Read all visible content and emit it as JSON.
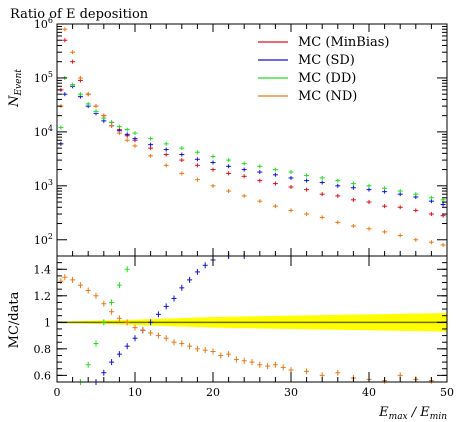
{
  "chart_data": [
    {
      "type": "scatter",
      "title": "Ratio of E deposition",
      "ylabel": "N_Event",
      "xlabel": "",
      "yscale": "log",
      "xlim": [
        0,
        50
      ],
      "ylim": [
        50,
        1000000
      ],
      "yticks": [
        {
          "value": 100,
          "base": "10",
          "exp": "2"
        },
        {
          "value": 1000,
          "base": "10",
          "exp": "3"
        },
        {
          "value": 10000,
          "base": "10",
          "exp": "4"
        },
        {
          "value": 100000,
          "base": "10",
          "exp": "5"
        },
        {
          "value": 1000000,
          "base": "10",
          "exp": "6"
        }
      ],
      "legend_position": "top-right",
      "series": [
        {
          "name": "MC (MinBias)",
          "color": "#e0101a",
          "x": [
            0.5,
            1,
            2,
            3,
            4,
            5,
            6,
            7,
            8,
            9,
            10,
            12,
            14,
            16,
            18,
            20,
            22,
            24,
            26,
            28,
            30,
            32,
            34,
            36,
            38,
            40,
            42,
            44,
            46,
            48,
            49.5
          ],
          "y": [
            60000,
            500000,
            200000,
            90000,
            50000,
            30000,
            20000,
            15000,
            11000,
            8500,
            7000,
            5000,
            3800,
            3000,
            2400,
            2000,
            1700,
            1500,
            1250,
            1100,
            950,
            850,
            700,
            650,
            550,
            500,
            420,
            400,
            350,
            300,
            280
          ]
        },
        {
          "name": "MC (SD)",
          "color": "#1010d8",
          "x": [
            0.5,
            1,
            2,
            3,
            4,
            5,
            6,
            7,
            8,
            9,
            10,
            12,
            14,
            16,
            18,
            20,
            22,
            24,
            26,
            28,
            30,
            32,
            34,
            36,
            38,
            40,
            42,
            44,
            46,
            48,
            49.5
          ],
          "y": [
            6000,
            50000,
            70000,
            45000,
            30000,
            22000,
            16000,
            13000,
            10500,
            9000,
            7500,
            5800,
            4700,
            3800,
            3100,
            2700,
            2300,
            2000,
            1800,
            1600,
            1400,
            1250,
            1150,
            1000,
            920,
            850,
            780,
            700,
            620,
            520,
            450
          ]
        },
        {
          "name": "MC (DD)",
          "color": "#22dd22",
          "x": [
            0.5,
            1,
            2,
            3,
            4,
            5,
            6,
            7,
            8,
            9,
            10,
            12,
            14,
            16,
            18,
            20,
            22,
            24,
            26,
            28,
            30,
            32,
            34,
            36,
            38,
            40,
            42,
            44,
            46,
            48,
            49.5
          ],
          "y": [
            12000,
            100000,
            75000,
            50000,
            33000,
            24000,
            18000,
            15000,
            12500,
            11000,
            9500,
            7500,
            6000,
            5000,
            4200,
            3500,
            3000,
            2600,
            2300,
            2000,
            1800,
            1550,
            1400,
            1250,
            1100,
            1000,
            900,
            800,
            700,
            600,
            550
          ]
        },
        {
          "name": "MC (ND)",
          "color": "#ee7711",
          "x": [
            0.5,
            1,
            2,
            3,
            4,
            5,
            6,
            7,
            8,
            9,
            10,
            12,
            14,
            16,
            18,
            20,
            22,
            24,
            26,
            28,
            30,
            32,
            34,
            36,
            38,
            40,
            42,
            44,
            46,
            48,
            49.5
          ],
          "y": [
            30000,
            800000,
            300000,
            100000,
            50000,
            30000,
            20000,
            13000,
            9500,
            7000,
            5500,
            3600,
            2400,
            1700,
            1300,
            1000,
            800,
            650,
            520,
            420,
            350,
            300,
            260,
            210,
            180,
            160,
            140,
            120,
            100,
            90,
            80
          ]
        }
      ]
    },
    {
      "type": "scatter",
      "title": "",
      "ylabel": "MC/data",
      "xlabel": "E_max / E_min",
      "xlim": [
        0,
        50
      ],
      "ylim": [
        0.55,
        1.5
      ],
      "xticks": [
        0,
        10,
        20,
        30,
        40,
        50
      ],
      "yticks": [
        0.6,
        0.8,
        1,
        1.2,
        1.4
      ],
      "reference_line": 1,
      "band": {
        "color": "#ffff00",
        "x": [
          0,
          10,
          20,
          30,
          40,
          50
        ],
        "half_width": [
          0.005,
          0.02,
          0.04,
          0.05,
          0.06,
          0.07
        ]
      },
      "series": [
        {
          "name": "MC (SD)",
          "color": "#1010d8",
          "x": [
            5,
            6,
            7,
            8,
            9,
            10,
            11,
            12,
            13,
            14,
            15,
            16,
            17,
            18,
            19,
            20,
            22,
            24
          ],
          "y": [
            0.55,
            0.62,
            0.7,
            0.76,
            0.82,
            0.88,
            0.94,
            1.0,
            1.06,
            1.12,
            1.18,
            1.26,
            1.32,
            1.38,
            1.43,
            1.47,
            1.5,
            1.5
          ]
        },
        {
          "name": "MC (DD)",
          "color": "#22dd22",
          "x": [
            3,
            4,
            5,
            6,
            7,
            8,
            9,
            10
          ],
          "y": [
            0.55,
            0.68,
            0.84,
            1.0,
            1.15,
            1.28,
            1.4,
            1.5
          ]
        },
        {
          "name": "MC (ND)",
          "color": "#ee7711",
          "x": [
            0.5,
            1,
            2,
            3,
            4,
            5,
            6,
            7,
            8,
            9,
            10,
            11,
            12,
            13,
            14,
            15,
            16,
            17,
            18,
            19,
            20,
            21,
            22,
            23,
            24,
            25,
            26,
            27,
            28,
            29,
            30,
            32,
            34,
            36,
            38,
            40,
            42,
            44,
            46,
            48
          ],
          "y": [
            1.31,
            1.34,
            1.32,
            1.28,
            1.24,
            1.2,
            1.14,
            1.08,
            1.03,
            1.0,
            0.96,
            0.94,
            0.92,
            0.9,
            0.88,
            0.85,
            0.84,
            0.82,
            0.8,
            0.79,
            0.78,
            0.75,
            0.76,
            0.72,
            0.71,
            0.7,
            0.68,
            0.67,
            0.68,
            0.66,
            0.64,
            0.63,
            0.6,
            0.62,
            0.58,
            0.57,
            0.56,
            0.6,
            0.57,
            0.56
          ]
        }
      ]
    }
  ]
}
